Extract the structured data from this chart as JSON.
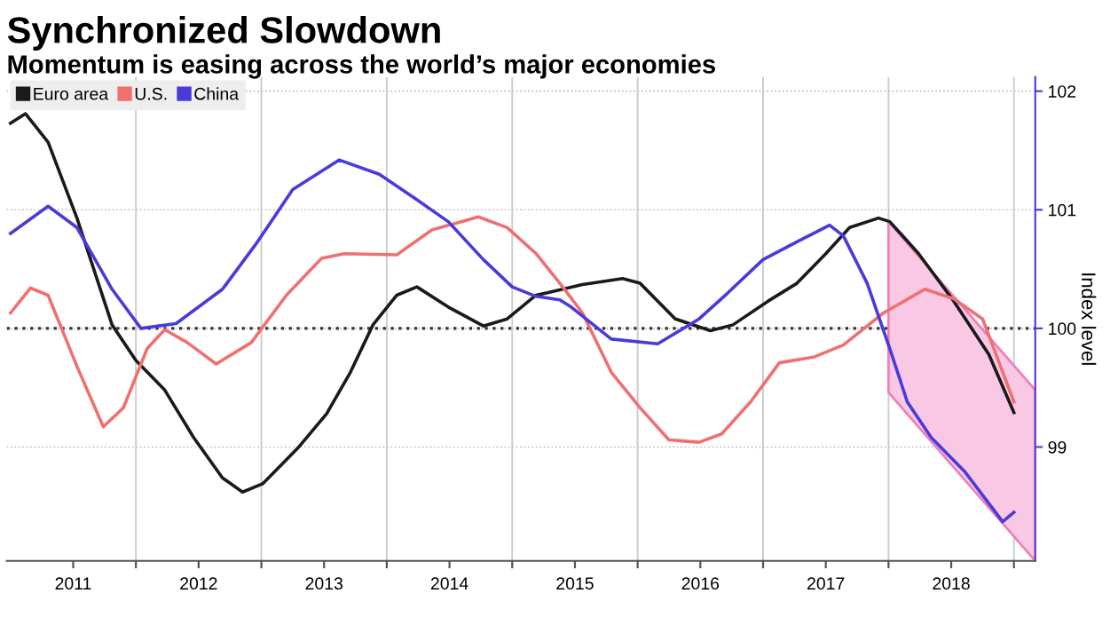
{
  "chart_data": {
    "type": "line",
    "title": "Synchronized Slowdown",
    "subtitle": "Momentum is easing across the world’s major economies",
    "ylabel": "Index level",
    "xlim": [
      2010.97,
      2019.17
    ],
    "ylim": [
      98.04,
      102.12
    ],
    "yticks": [
      99,
      100,
      101,
      102
    ],
    "xticks": [
      {
        "value": 2011.5,
        "label": "2011"
      },
      {
        "value": 2012,
        "label": null
      },
      {
        "value": 2012.5,
        "label": "2012"
      },
      {
        "value": 2013,
        "label": null
      },
      {
        "value": 2013.5,
        "label": "2013"
      },
      {
        "value": 2014,
        "label": null
      },
      {
        "value": 2014.5,
        "label": "2014"
      },
      {
        "value": 2015,
        "label": null
      },
      {
        "value": 2015.5,
        "label": "2015"
      },
      {
        "value": 2016,
        "label": null
      },
      {
        "value": 2016.5,
        "label": "2016"
      },
      {
        "value": 2017,
        "label": null
      },
      {
        "value": 2017.5,
        "label": "2017"
      },
      {
        "value": 2018,
        "label": null
      },
      {
        "value": 2018.5,
        "label": "2018"
      },
      {
        "value": 2019,
        "label": null
      }
    ],
    "grid": true,
    "legend": "top left",
    "marker": "none",
    "line_style": "solid",
    "ref_lines": [
      {
        "axis": "y",
        "value": 100,
        "label": null,
        "color": "#333333",
        "line_style": "dotted"
      }
    ],
    "series": [
      {
        "color": "#f9c8e4",
        "x": [
          2018.0,
          2019.17
        ],
        "values": [
          null,
          null
        ],
        "lower": [
          99.46,
          98.04
        ],
        "upper": [
          100.9,
          99.48
        ]
      },
      {
        "name": "Euro area",
        "color": "#1a1a1a",
        "x": [
          2011.0,
          2011.12,
          2011.3,
          2011.53,
          2011.81,
          2012.0,
          2012.23,
          2012.46,
          2012.69,
          2012.85,
          2013.01,
          2013.29,
          2013.52,
          2013.71,
          2013.89,
          2014.08,
          2014.24,
          2014.49,
          2014.77,
          2014.96,
          2015.19,
          2015.28,
          2015.56,
          2015.88,
          2016.02,
          2016.3,
          2016.58,
          2016.76,
          2017.04,
          2017.27,
          2017.5,
          2017.69,
          2017.92,
          2018.01,
          2018.24,
          2018.52,
          2018.8,
          2019.0
        ],
        "values": [
          101.73,
          101.81,
          101.57,
          100.93,
          100.03,
          99.73,
          99.48,
          99.08,
          98.74,
          98.62,
          98.69,
          98.99,
          99.28,
          99.63,
          100.03,
          100.28,
          100.35,
          100.18,
          100.02,
          100.08,
          100.28,
          100.3,
          100.37,
          100.42,
          100.38,
          100.08,
          99.98,
          100.03,
          100.23,
          100.38,
          100.63,
          100.85,
          100.93,
          100.9,
          100.63,
          100.23,
          99.78,
          99.29
        ]
      },
      {
        "name": "U.S.",
        "color": "#f07070",
        "x": [
          2011.0,
          2011.16,
          2011.3,
          2011.53,
          2011.74,
          2011.9,
          2012.09,
          2012.23,
          2012.41,
          2012.64,
          2012.92,
          2013.2,
          2013.48,
          2013.66,
          2014.08,
          2014.36,
          2014.73,
          2014.96,
          2015.19,
          2015.38,
          2015.56,
          2015.79,
          2016.02,
          2016.25,
          2016.49,
          2016.67,
          2016.9,
          2017.13,
          2017.41,
          2017.64,
          2017.96,
          2018.29,
          2018.52,
          2018.75,
          2019.0
        ],
        "values": [
          100.13,
          100.34,
          100.28,
          99.68,
          99.17,
          99.33,
          99.83,
          99.99,
          99.88,
          99.7,
          99.88,
          100.28,
          100.59,
          100.63,
          100.62,
          100.83,
          100.94,
          100.85,
          100.63,
          100.38,
          100.13,
          99.63,
          99.33,
          99.06,
          99.04,
          99.11,
          99.38,
          99.71,
          99.76,
          99.86,
          100.13,
          100.33,
          100.25,
          100.08,
          99.38
        ]
      },
      {
        "name": "China",
        "color": "#4b3adb",
        "x": [
          2011.0,
          2011.3,
          2011.53,
          2011.81,
          2012.04,
          2012.32,
          2012.69,
          2012.97,
          2013.25,
          2013.62,
          2013.94,
          2014.22,
          2014.49,
          2014.77,
          2015.0,
          2015.19,
          2015.38,
          2015.47,
          2015.79,
          2016.16,
          2016.49,
          2016.72,
          2017.0,
          2017.27,
          2017.53,
          2017.64,
          2017.83,
          2018.01,
          2018.15,
          2018.34,
          2018.61,
          2018.91,
          2019.0
        ],
        "values": [
          100.8,
          101.03,
          100.85,
          100.33,
          100.0,
          100.04,
          100.33,
          100.73,
          101.17,
          101.42,
          101.3,
          101.1,
          100.9,
          100.58,
          100.35,
          100.27,
          100.24,
          100.18,
          99.91,
          99.87,
          100.08,
          100.3,
          100.58,
          100.73,
          100.87,
          100.78,
          100.38,
          99.83,
          99.38,
          99.08,
          98.79,
          98.37,
          98.45
        ]
      }
    ]
  }
}
